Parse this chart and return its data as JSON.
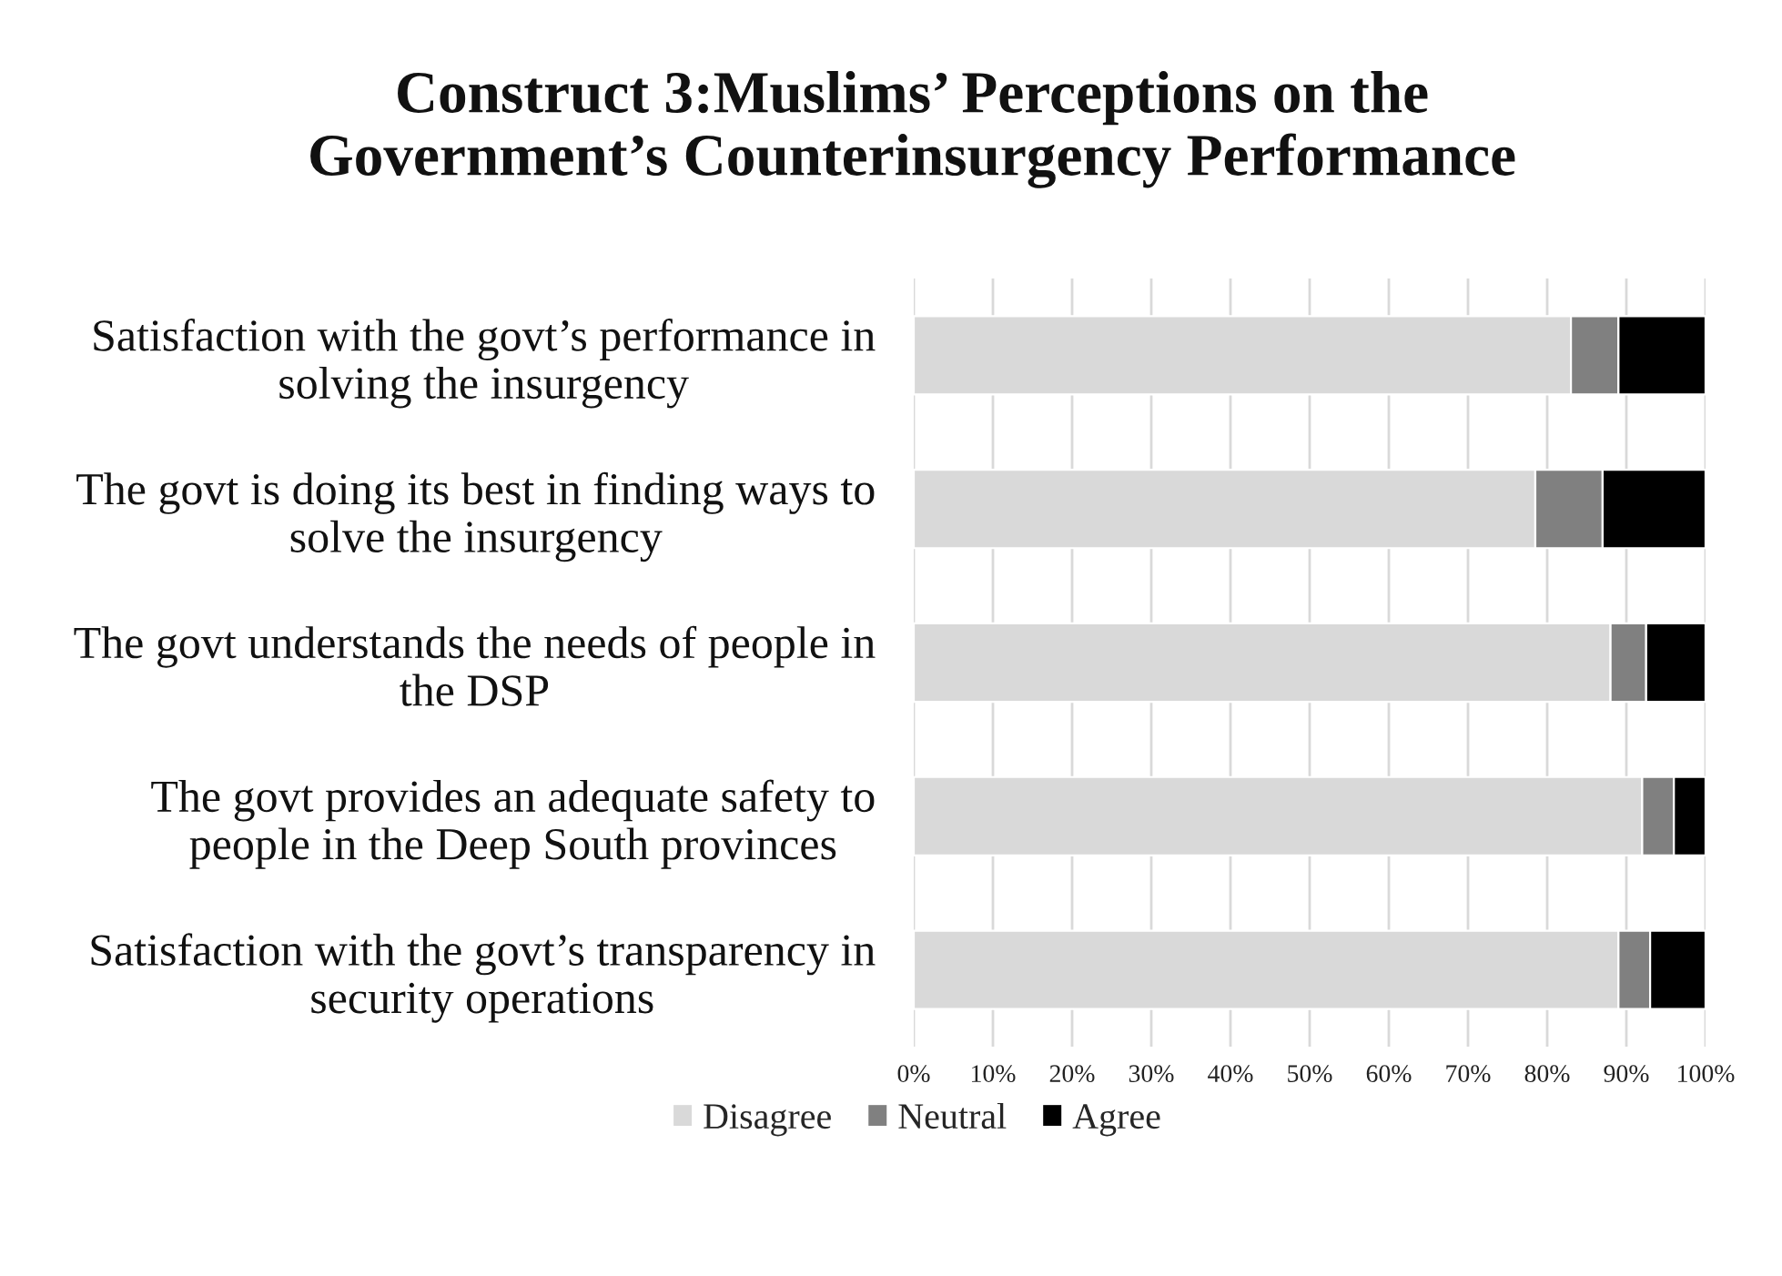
{
  "chart_data": {
    "type": "bar",
    "orientation": "horizontal",
    "stacked": true,
    "title": "Construct 3:Muslims’ Perceptions on the Government’s Counterinsurgency Performance",
    "categories": [
      "Satisfaction with the govt’s performance in solving the insurgency",
      "The govt is doing its best in finding ways to solve the insurgency",
      "The govt understands the needs of people in the DSP",
      "The govt provides an adequate safety to people in the Deep South provinces",
      "Satisfaction with the govt’s transparency in security operations"
    ],
    "series": [
      {
        "name": "Disagree",
        "color": "#d9d9d9",
        "values": [
          83,
          78.5,
          88,
          92,
          89
        ]
      },
      {
        "name": "Neutral",
        "color": "#808080",
        "values": [
          6,
          8.5,
          4.5,
          4,
          4
        ]
      },
      {
        "name": "Agree",
        "color": "#000000",
        "values": [
          11,
          13,
          7.5,
          4,
          7
        ]
      }
    ],
    "xlim": [
      0,
      100
    ],
    "xticks": [
      {
        "value": 0,
        "label": "0%"
      },
      {
        "value": 10,
        "label": "10%"
      },
      {
        "value": 20,
        "label": "20%"
      },
      {
        "value": 30,
        "label": "30%"
      },
      {
        "value": 40,
        "label": "40%"
      },
      {
        "value": 50,
        "label": "50%"
      },
      {
        "value": 60,
        "label": "60%"
      },
      {
        "value": 70,
        "label": "70%"
      },
      {
        "value": 80,
        "label": "80%"
      },
      {
        "value": 90,
        "label": "90%"
      },
      {
        "value": 100,
        "label": "100%"
      }
    ],
    "grid": "x",
    "legend": "bottom"
  }
}
